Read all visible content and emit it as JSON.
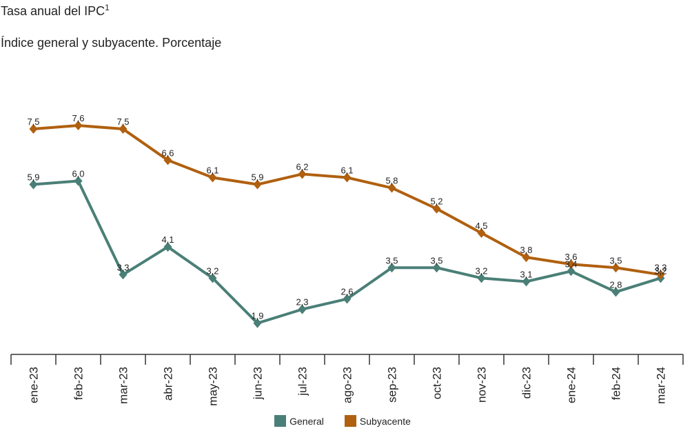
{
  "header": {
    "title": "Tasa anual del IPC",
    "title_sup": "1",
    "subtitle": "Índice general y subyacente. Porcentaje"
  },
  "chart_data": {
    "type": "line",
    "title": "Tasa anual del IPC",
    "subtitle": "Índice general y subyacente. Porcentaje",
    "xlabel": "",
    "ylabel": "",
    "categories": [
      "ene-23",
      "feb-23",
      "mar-23",
      "abr-23",
      "may-23",
      "jun-23",
      "jul-23",
      "ago-23",
      "sep-23",
      "oct-23",
      "nov-23",
      "dic-23",
      "ene-24",
      "feb-24",
      "mar-24"
    ],
    "series": [
      {
        "name": "General",
        "color": "#4a7f77",
        "marker": "diamond",
        "values": [
          5.9,
          6.0,
          3.3,
          4.1,
          3.2,
          1.9,
          2.3,
          2.6,
          3.5,
          3.5,
          3.2,
          3.1,
          3.4,
          2.8,
          3.2
        ]
      },
      {
        "name": "Subyacente",
        "color": "#b0600f",
        "marker": "diamond",
        "values": [
          7.5,
          7.6,
          7.5,
          6.6,
          6.1,
          5.9,
          6.2,
          6.1,
          5.8,
          5.2,
          4.5,
          3.8,
          3.6,
          3.5,
          3.3
        ]
      }
    ],
    "ylim": [
      1.0,
      8.5
    ],
    "grid": false,
    "y_axis_visible": false,
    "data_labels": true,
    "decimal_separator": ",",
    "legend": "bottom-center"
  }
}
